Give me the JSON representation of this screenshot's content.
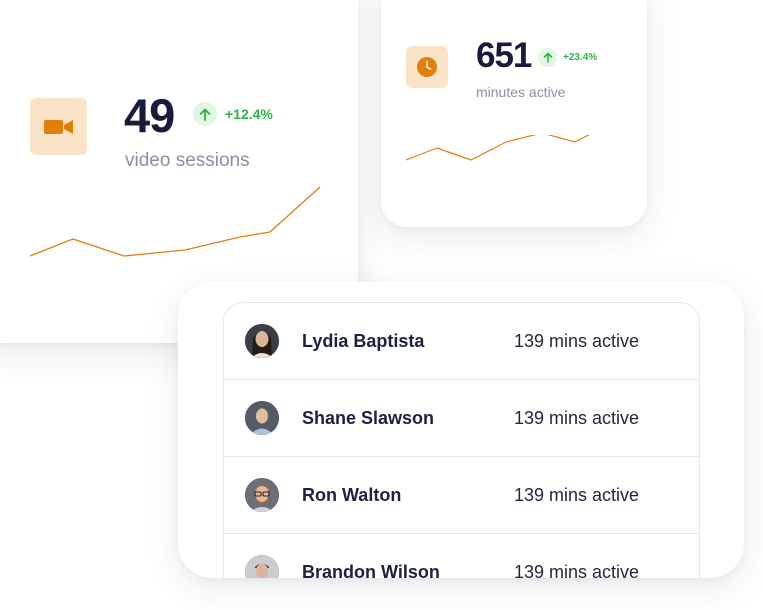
{
  "video_sessions": {
    "icon": "video-camera-icon",
    "count": "49",
    "trend": "+12.4%",
    "trend_icon": "arrow-up-icon",
    "label": "video sessions",
    "sparkline_icon": "line-chart",
    "accent_color": "#e07f0c"
  },
  "minutes_active": {
    "icon": "clock-icon",
    "count": "651",
    "trend": "+23.4%",
    "trend_icon": "arrow-up-icon",
    "label": "minutes active",
    "accent_color": "#e07f0c"
  },
  "active_users": [
    {
      "name": "Lydia Baptista",
      "activity": "139 mins active",
      "avatar": "avatar-photo"
    },
    {
      "name": "Shane Slawson",
      "activity": "139 mins active",
      "avatar": "avatar-photo"
    },
    {
      "name": "Ron Walton",
      "activity": "139 mins active",
      "avatar": "avatar-photo"
    },
    {
      "name": "Brandon Wilson",
      "activity": "139 mins active",
      "avatar": "avatar-photo"
    }
  ],
  "colors": {
    "positive": "#2fb347",
    "positive_bg": "#e3f6e4",
    "icon_tile": "#fbe3c7",
    "accent": "#e07f0c"
  }
}
